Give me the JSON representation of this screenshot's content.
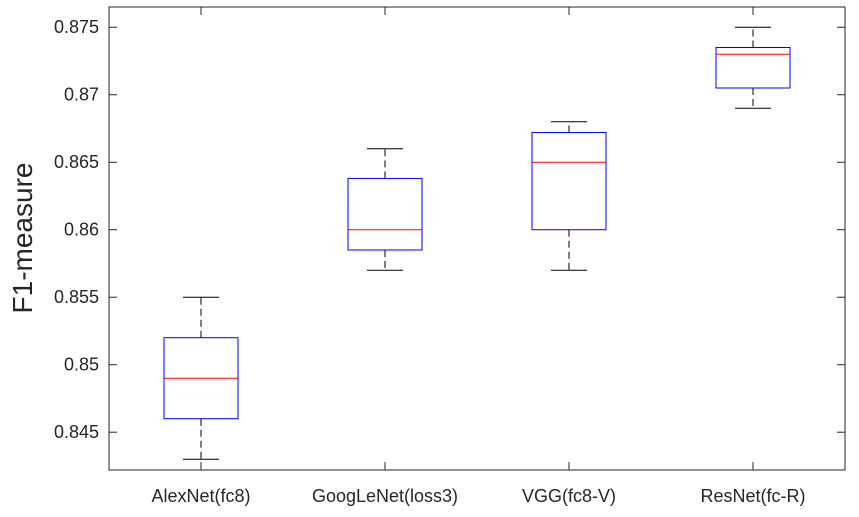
{
  "chart_data": {
    "type": "boxplot",
    "ylabel": "F1-measure",
    "xlabel": "",
    "ylim": [
      0.8422,
      0.8765
    ],
    "yticks": [
      0.845,
      0.85,
      0.855,
      0.86,
      0.865,
      0.87,
      0.875
    ],
    "ytick_labels": [
      "0.845",
      "0.85",
      "0.855",
      "0.86",
      "0.865",
      "0.87",
      "0.875"
    ],
    "categories": [
      "AlexNet(fc8)",
      "GoogLeNet(loss3)",
      "VGG(fc8-V)",
      "ResNet(fc-R)"
    ],
    "boxes": [
      {
        "category": "AlexNet(fc8)",
        "min": 0.843,
        "q1": 0.846,
        "median": 0.849,
        "q3": 0.852,
        "max": 0.855
      },
      {
        "category": "GoogLeNet(loss3)",
        "min": 0.857,
        "q1": 0.8585,
        "median": 0.86,
        "q3": 0.8638,
        "max": 0.866
      },
      {
        "category": "VGG(fc8-V)",
        "min": 0.857,
        "q1": 0.86,
        "median": 0.865,
        "q3": 0.8672,
        "max": 0.868
      },
      {
        "category": "ResNet(fc-R)",
        "min": 0.869,
        "q1": 0.8705,
        "median": 0.873,
        "q3": 0.8735,
        "max": 0.875
      }
    ],
    "grid": false,
    "colors": {
      "box": "#0000ff",
      "median": "#ff0000",
      "whisker": "#000000",
      "axis": "#262626"
    }
  }
}
